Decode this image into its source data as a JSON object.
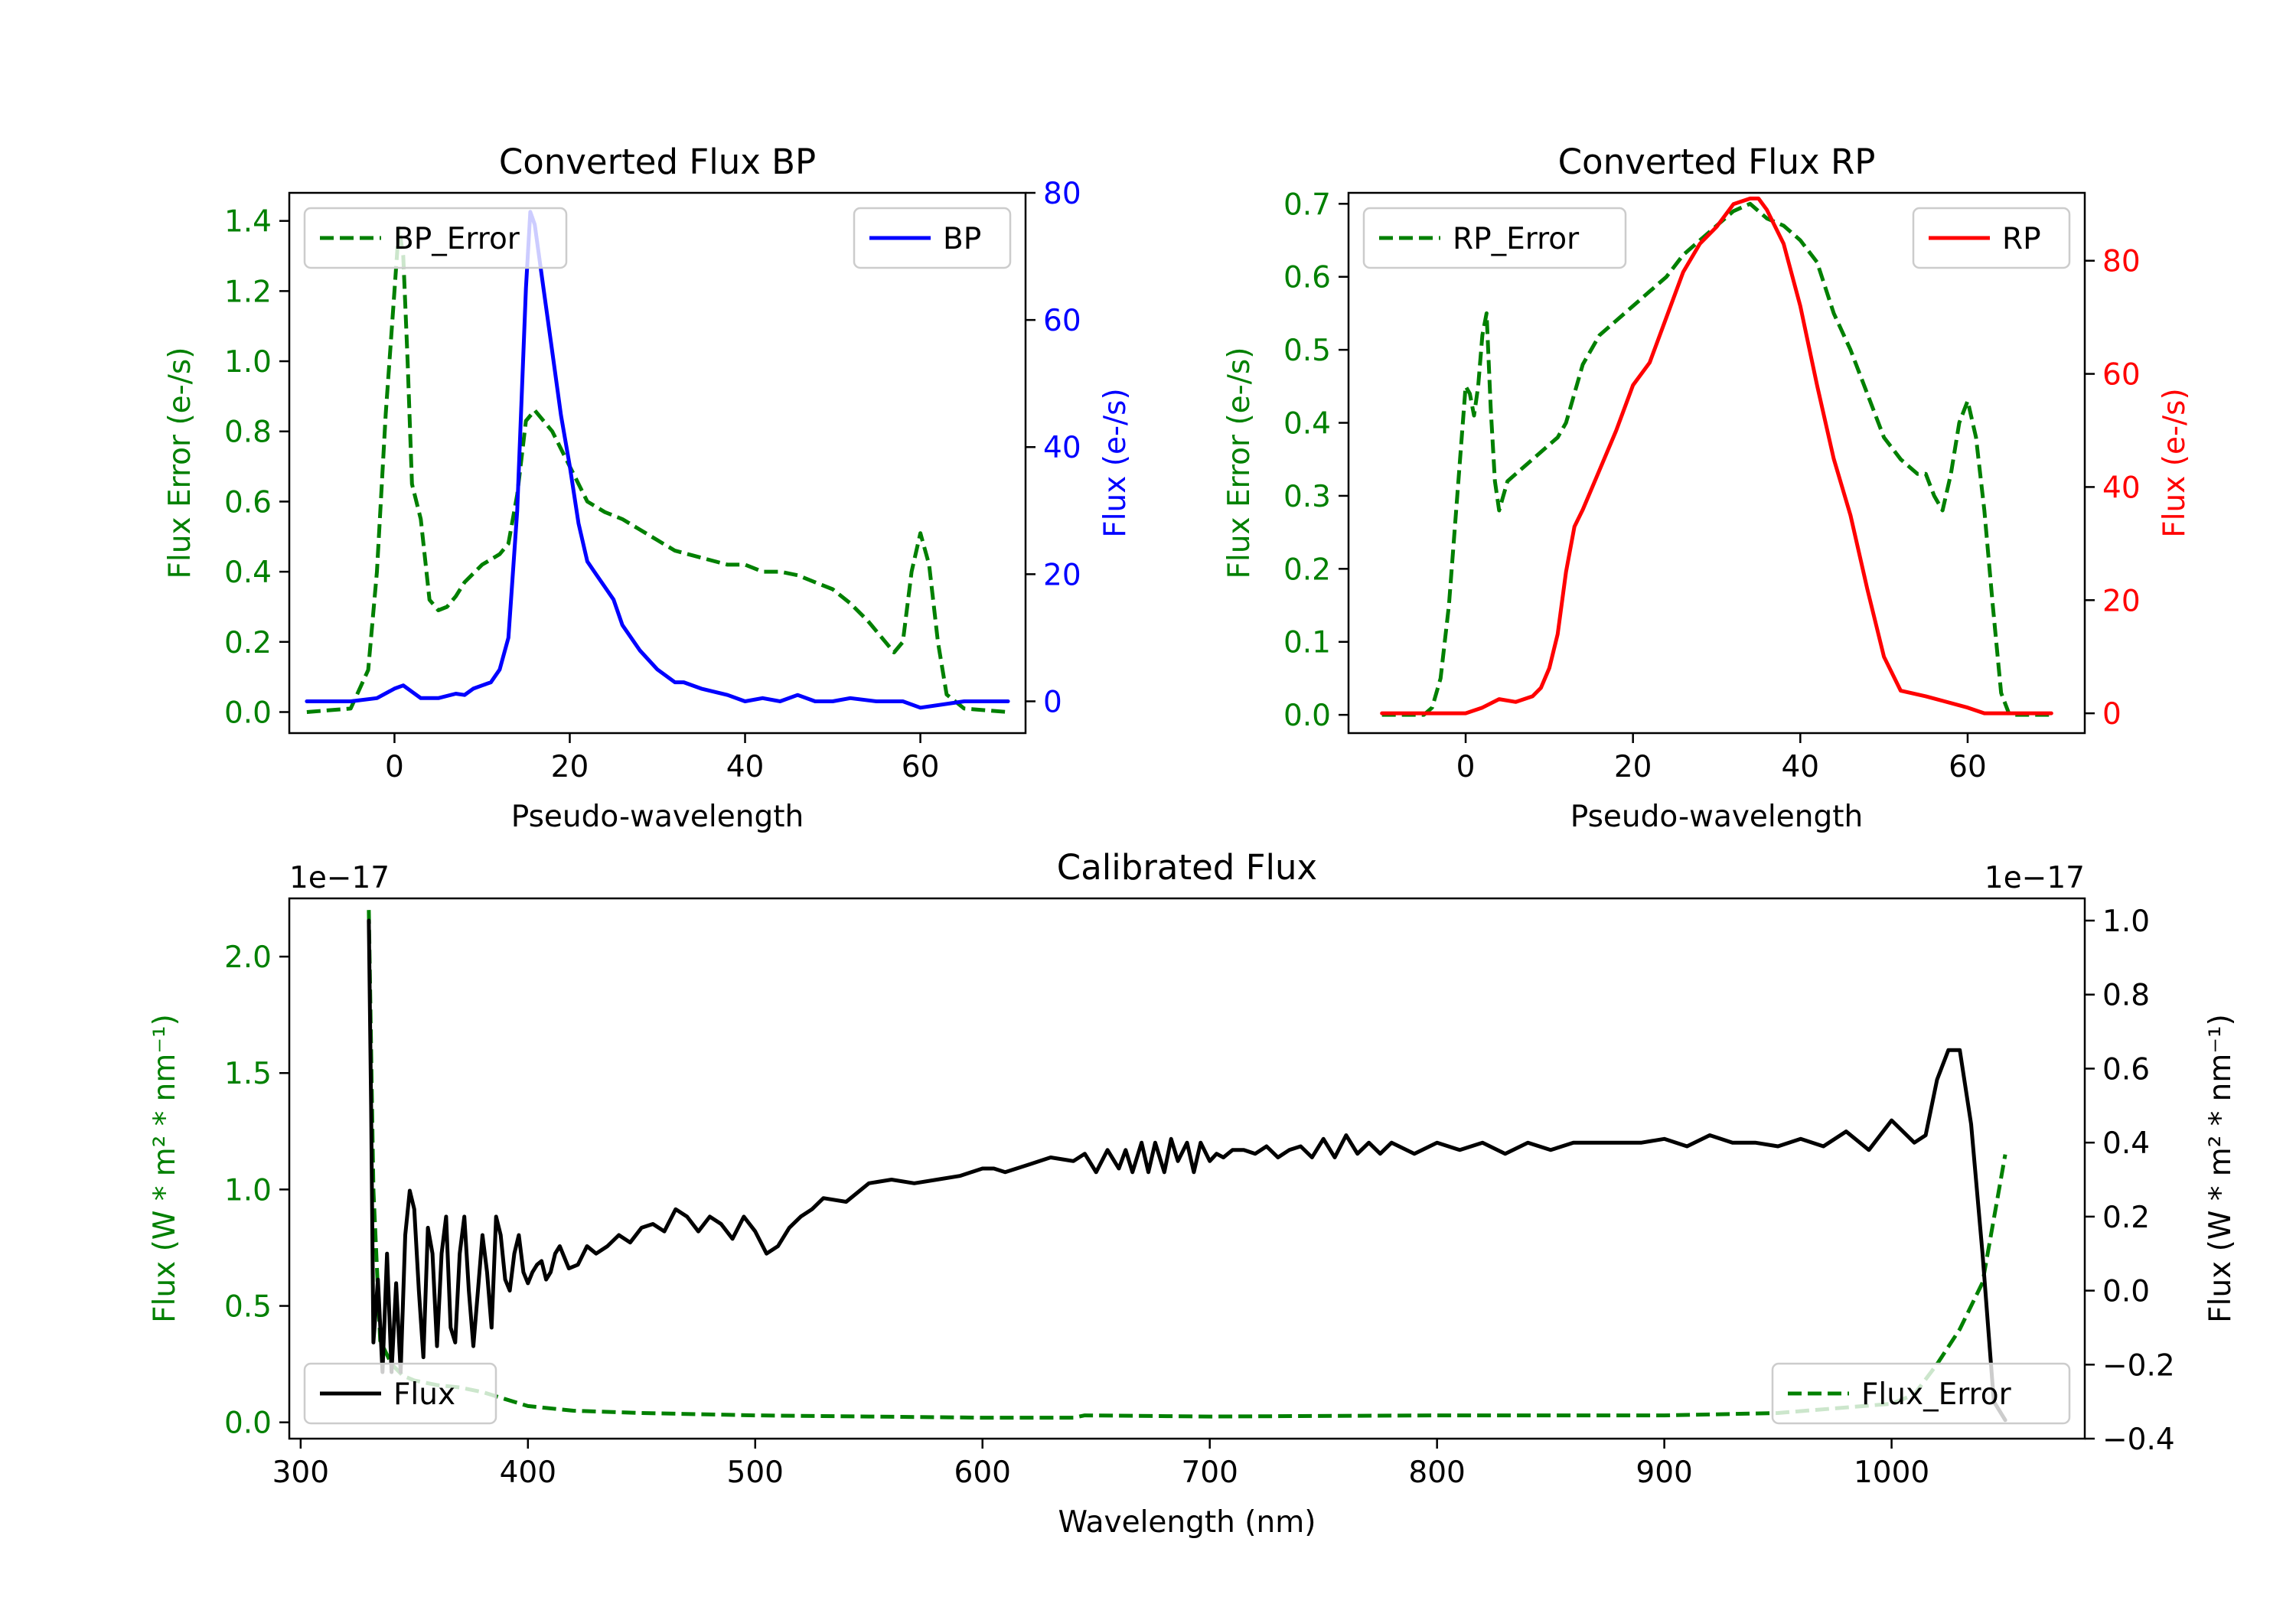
{
  "chart_data": [
    {
      "type": "line",
      "title": "Converted Flux BP",
      "xlabel": "Pseudo-wavelength",
      "ylabel_left": "Flux Error (e-/s)",
      "ylabel_right": "Flux (e-/s)",
      "xlim": [
        -12,
        72
      ],
      "ylim_left": [
        -0.06,
        1.48
      ],
      "ylim_right": [
        -5,
        80
      ],
      "xticks": [
        0,
        20,
        40,
        60
      ],
      "yticks_left": [
        "0.0",
        "0.2",
        "0.4",
        "0.6",
        "0.8",
        "1.0",
        "1.2",
        "1.4"
      ],
      "yticks_right": [
        0,
        20,
        40,
        60,
        80
      ],
      "colors": {
        "left": "#008000",
        "right": "#0000ff"
      },
      "series": [
        {
          "name": "BP_Error",
          "axis": "left",
          "style": "dashed",
          "color": "#008000",
          "legend": "top-left",
          "x": [
            -10,
            -5,
            -3,
            -2,
            -1,
            0,
            0.5,
            1,
            1.5,
            2,
            3,
            4,
            5,
            6,
            7,
            8,
            10,
            12,
            13,
            14,
            15,
            16,
            18,
            20,
            22,
            24,
            26,
            28,
            30,
            32,
            35,
            38,
            40,
            42,
            44,
            46,
            48,
            50,
            52,
            54,
            56,
            57,
            58,
            59,
            60,
            61,
            62,
            63,
            65,
            70
          ],
          "y": [
            0.0,
            0.01,
            0.12,
            0.4,
            0.85,
            1.2,
            1.38,
            1.3,
            1.0,
            0.65,
            0.55,
            0.32,
            0.29,
            0.3,
            0.33,
            0.37,
            0.42,
            0.45,
            0.48,
            0.62,
            0.83,
            0.86,
            0.8,
            0.7,
            0.6,
            0.57,
            0.55,
            0.52,
            0.49,
            0.46,
            0.44,
            0.42,
            0.42,
            0.4,
            0.4,
            0.39,
            0.37,
            0.35,
            0.31,
            0.26,
            0.2,
            0.17,
            0.2,
            0.4,
            0.51,
            0.42,
            0.2,
            0.05,
            0.01,
            0.0
          ]
        },
        {
          "name": "BP",
          "axis": "right",
          "style": "solid",
          "color": "#0000ff",
          "legend": "top-right",
          "x": [
            -10,
            -5,
            -2,
            0,
            1,
            2,
            3,
            5,
            7,
            8,
            9,
            10,
            11,
            12,
            13,
            14,
            15,
            15.5,
            16,
            17,
            18,
            19,
            20,
            21,
            22,
            23,
            24,
            25,
            26,
            28,
            30,
            32,
            33,
            35,
            38,
            40,
            42,
            44,
            46,
            48,
            50,
            52,
            55,
            58,
            60,
            65,
            70
          ],
          "y": [
            0,
            0,
            0.5,
            2,
            2.5,
            1.5,
            0.5,
            0.5,
            1.2,
            1,
            2,
            2.5,
            3,
            5,
            10,
            30,
            65,
            77,
            75,
            65,
            55,
            45,
            37,
            28,
            22,
            20,
            18,
            16,
            12,
            8,
            5,
            3,
            3,
            2,
            1,
            0,
            0.5,
            0,
            1,
            0,
            0,
            0.5,
            0,
            0,
            -1,
            0,
            0
          ]
        }
      ]
    },
    {
      "type": "line",
      "title": "Converted Flux RP",
      "xlabel": "Pseudo-wavelength",
      "ylabel_left": "Flux Error (e-/s)",
      "ylabel_right": "Flux (e-/s)",
      "xlim": [
        -14,
        74
      ],
      "ylim_left": [
        -0.025,
        0.715
      ],
      "ylim_right": [
        -3.5,
        92
      ],
      "xticks": [
        0,
        20,
        40,
        60
      ],
      "yticks_left": [
        "0.0",
        "0.1",
        "0.2",
        "0.3",
        "0.4",
        "0.5",
        "0.6",
        "0.7"
      ],
      "yticks_right": [
        0,
        20,
        40,
        60,
        80
      ],
      "colors": {
        "left": "#008000",
        "right": "#ff0000"
      },
      "series": [
        {
          "name": "RP_Error",
          "axis": "left",
          "style": "dashed",
          "color": "#008000",
          "legend": "top-left",
          "x": [
            -10,
            -5,
            -4,
            -3,
            -2,
            -1,
            0,
            0.5,
            1,
            1.5,
            2,
            2.5,
            3,
            3.5,
            4,
            5,
            6,
            8,
            10,
            11,
            12,
            14,
            16,
            18,
            20,
            22,
            24,
            26,
            28,
            30,
            32,
            34,
            35,
            36,
            38,
            40,
            42,
            44,
            46,
            48,
            50,
            52,
            54,
            55,
            56,
            57,
            58,
            59,
            60,
            61,
            62,
            63,
            64,
            65,
            70
          ],
          "y": [
            0.0,
            0.0,
            0.01,
            0.05,
            0.15,
            0.3,
            0.45,
            0.44,
            0.41,
            0.45,
            0.52,
            0.55,
            0.42,
            0.32,
            0.28,
            0.32,
            0.33,
            0.35,
            0.37,
            0.38,
            0.4,
            0.48,
            0.52,
            0.54,
            0.56,
            0.58,
            0.6,
            0.63,
            0.65,
            0.67,
            0.69,
            0.7,
            0.69,
            0.68,
            0.67,
            0.65,
            0.62,
            0.55,
            0.5,
            0.44,
            0.38,
            0.35,
            0.33,
            0.33,
            0.3,
            0.28,
            0.33,
            0.4,
            0.43,
            0.38,
            0.28,
            0.15,
            0.03,
            0.0,
            0.0
          ]
        },
        {
          "name": "RP",
          "axis": "right",
          "style": "solid",
          "color": "#ff0000",
          "legend": "top-right",
          "x": [
            -10,
            -5,
            0,
            2,
            4,
            6,
            8,
            9,
            10,
            11,
            12,
            13,
            14,
            16,
            18,
            20,
            22,
            24,
            26,
            28,
            30,
            32,
            34,
            35,
            36,
            38,
            40,
            42,
            44,
            46,
            48,
            50,
            52,
            55,
            60,
            62,
            65,
            70
          ],
          "y": [
            0,
            0,
            0,
            1,
            2.5,
            2,
            3,
            4.5,
            8,
            14,
            25,
            33,
            36,
            43,
            50,
            58,
            62,
            70,
            78,
            83,
            86,
            90,
            91,
            91,
            89,
            83,
            72,
            58,
            45,
            35,
            22,
            10,
            4,
            3,
            1,
            0,
            0,
            0
          ]
        }
      ]
    },
    {
      "type": "line",
      "title": "Calibrated Flux",
      "xlabel": "Wavelength (nm)",
      "ylabel_left": "Flux (W * m² * nm⁻¹)",
      "ylabel_right": "Flux (W * m² * nm⁻¹)",
      "scale_left": "1e−17",
      "scale_right": "1e−17",
      "xlim": [
        295,
        1085
      ],
      "ylim_left": [
        -0.07,
        2.25
      ],
      "ylim_right": [
        -0.4,
        1.06
      ],
      "xticks": [
        300,
        400,
        500,
        600,
        700,
        800,
        900,
        1000
      ],
      "yticks_left": [
        "0.0",
        "0.5",
        "1.0",
        "1.5",
        "2.0"
      ],
      "yticks_right": [
        "−0.4",
        "−0.2",
        "0.0",
        "0.2",
        "0.4",
        "0.6",
        "0.8",
        "1.0"
      ],
      "colors": {
        "left": "#008000",
        "right": "#000000"
      },
      "series": [
        {
          "name": "Flux_Error",
          "axis": "left",
          "style": "dashed",
          "color": "#008000",
          "legend": "bottom-right",
          "x": [
            330,
            332,
            335,
            340,
            345,
            350,
            360,
            370,
            380,
            390,
            400,
            420,
            450,
            500,
            550,
            600,
            640,
            645,
            700,
            800,
            900,
            950,
            1000,
            1010,
            1020,
            1030,
            1040,
            1050
          ],
          "y": [
            2.2,
            1.0,
            0.35,
            0.25,
            0.2,
            0.18,
            0.16,
            0.15,
            0.13,
            0.1,
            0.07,
            0.05,
            0.04,
            0.03,
            0.025,
            0.02,
            0.02,
            0.03,
            0.025,
            0.03,
            0.03,
            0.04,
            0.08,
            0.12,
            0.25,
            0.4,
            0.6,
            1.15
          ]
        },
        {
          "name": "Flux",
          "axis": "right",
          "style": "solid",
          "color": "#000000",
          "legend": "bottom-left",
          "x": [
            330,
            331,
            332,
            334,
            336,
            338,
            340,
            342,
            344,
            346,
            348,
            350,
            352,
            354,
            356,
            358,
            360,
            362,
            364,
            366,
            368,
            370,
            372,
            374,
            376,
            378,
            380,
            382,
            384,
            386,
            388,
            390,
            392,
            394,
            396,
            398,
            400,
            402,
            404,
            406,
            408,
            410,
            412,
            414,
            418,
            422,
            426,
            430,
            435,
            440,
            445,
            450,
            455,
            460,
            465,
            470,
            475,
            480,
            485,
            490,
            495,
            500,
            505,
            510,
            515,
            520,
            525,
            530,
            540,
            550,
            560,
            570,
            580,
            590,
            600,
            605,
            610,
            620,
            630,
            640,
            645,
            650,
            655,
            660,
            663,
            666,
            670,
            673,
            676,
            680,
            683,
            686,
            690,
            693,
            696,
            700,
            703,
            706,
            710,
            715,
            720,
            725,
            730,
            735,
            740,
            745,
            750,
            755,
            760,
            765,
            770,
            775,
            780,
            790,
            800,
            810,
            820,
            830,
            840,
            850,
            860,
            870,
            880,
            890,
            900,
            910,
            920,
            930,
            940,
            950,
            960,
            970,
            980,
            990,
            1000,
            1010,
            1015,
            1020,
            1025,
            1030,
            1035,
            1040,
            1045,
            1050
          ],
          "y": [
            1.0,
            0.5,
            -0.14,
            0.03,
            -0.22,
            0.1,
            -0.22,
            0.02,
            -0.22,
            0.15,
            0.27,
            0.22,
            0.0,
            -0.18,
            0.17,
            0.1,
            -0.15,
            0.1,
            0.2,
            -0.1,
            -0.14,
            0.1,
            0.2,
            0.0,
            -0.15,
            0.0,
            0.15,
            0.05,
            -0.1,
            0.2,
            0.15,
            0.03,
            0.0,
            0.1,
            0.15,
            0.05,
            0.02,
            0.05,
            0.07,
            0.08,
            0.03,
            0.05,
            0.1,
            0.12,
            0.06,
            0.07,
            0.12,
            0.1,
            0.12,
            0.15,
            0.13,
            0.17,
            0.18,
            0.16,
            0.22,
            0.2,
            0.16,
            0.2,
            0.18,
            0.14,
            0.2,
            0.16,
            0.1,
            0.12,
            0.17,
            0.2,
            0.22,
            0.25,
            0.24,
            0.29,
            0.3,
            0.29,
            0.3,
            0.31,
            0.33,
            0.33,
            0.32,
            0.34,
            0.36,
            0.35,
            0.37,
            0.32,
            0.38,
            0.33,
            0.38,
            0.32,
            0.4,
            0.32,
            0.4,
            0.32,
            0.41,
            0.35,
            0.4,
            0.32,
            0.4,
            0.35,
            0.37,
            0.36,
            0.38,
            0.38,
            0.37,
            0.39,
            0.36,
            0.38,
            0.39,
            0.36,
            0.41,
            0.36,
            0.42,
            0.37,
            0.4,
            0.37,
            0.4,
            0.37,
            0.4,
            0.38,
            0.4,
            0.37,
            0.4,
            0.38,
            0.4,
            0.4,
            0.4,
            0.4,
            0.41,
            0.39,
            0.42,
            0.4,
            0.4,
            0.39,
            0.41,
            0.39,
            0.43,
            0.38,
            0.46,
            0.4,
            0.42,
            0.57,
            0.65,
            0.65,
            0.45,
            0.1,
            -0.3,
            -0.35
          ]
        }
      ]
    }
  ]
}
